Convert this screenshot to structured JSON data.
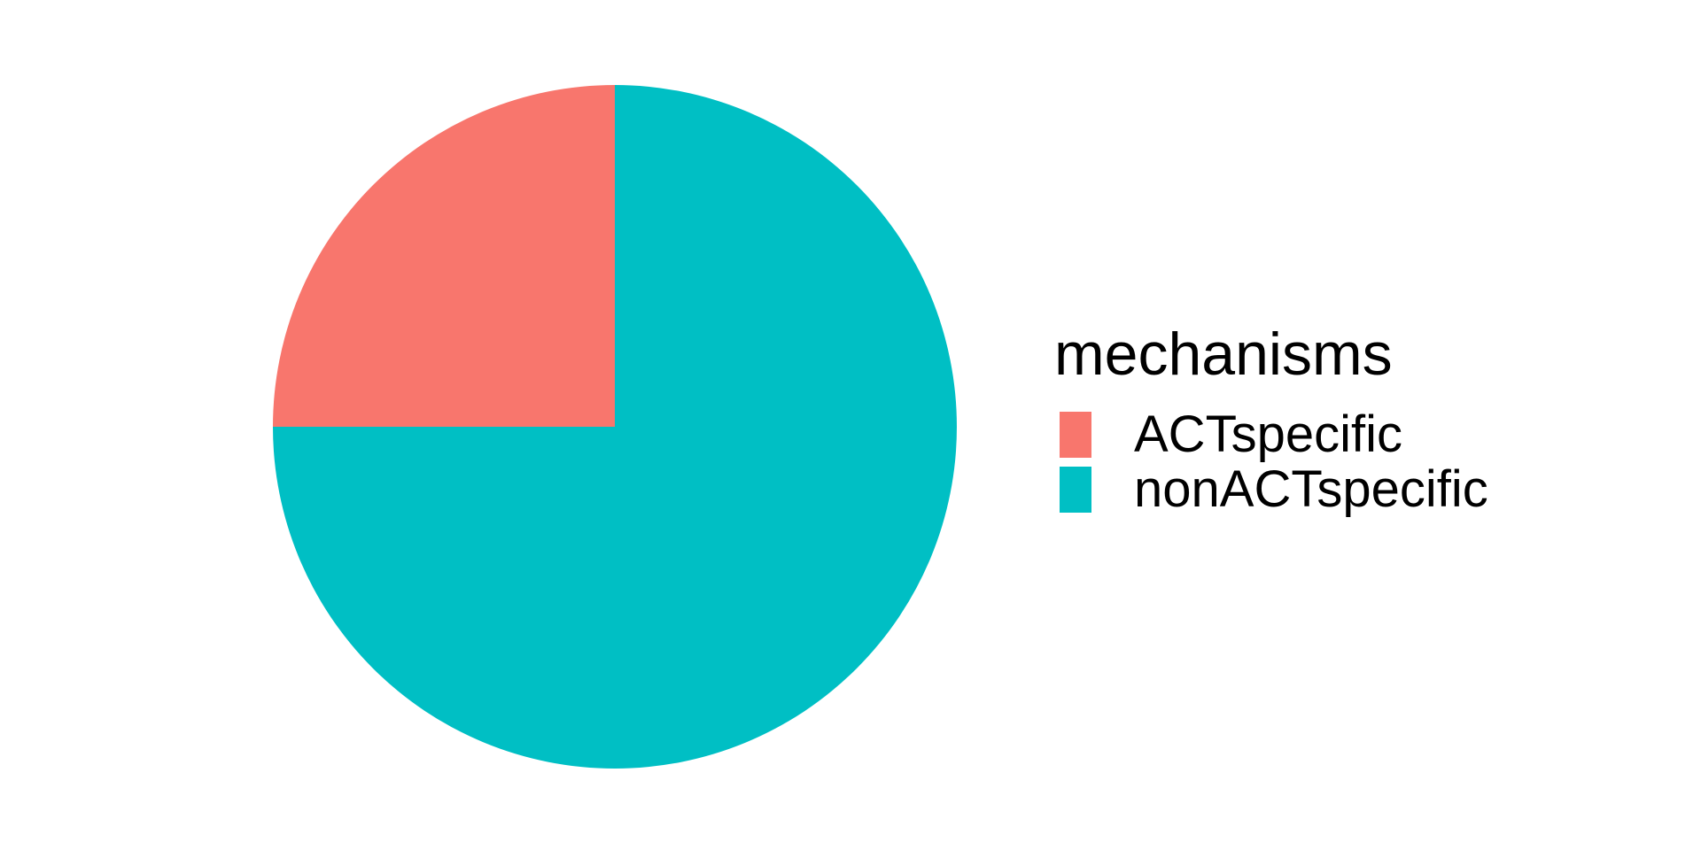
{
  "chart_data": {
    "type": "pie",
    "title": "",
    "categories": [
      "ACTspecific",
      "nonACTspecific"
    ],
    "values": [
      25,
      75
    ],
    "colors": [
      "#F8766D",
      "#00BFC4"
    ],
    "start_angle_deg": 0,
    "direction": "counterclockwise",
    "legend": {
      "title": "mechanisms",
      "placement": "right"
    }
  }
}
